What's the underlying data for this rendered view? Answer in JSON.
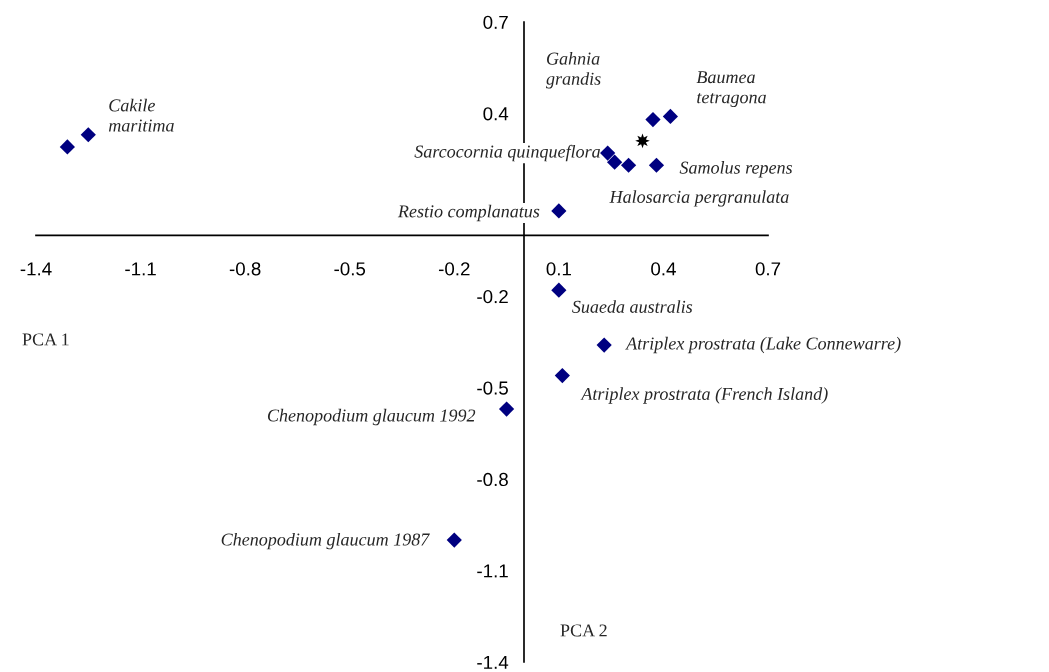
{
  "chart_data": {
    "type": "scatter",
    "xlabel": "PCA 1",
    "ylabel": "PCA 2",
    "xlim": [
      -1.4,
      0.7
    ],
    "ylim": [
      -1.4,
      0.7
    ],
    "xticks": [
      -1.4,
      -1.1,
      -0.8,
      -0.5,
      -0.2,
      0.1,
      0.4,
      0.7
    ],
    "yticks": [
      -1.4,
      -1.1,
      -0.8,
      -0.5,
      -0.2,
      0.4,
      0.7
    ],
    "grid": false,
    "legend": false,
    "series": [
      {
        "color": "#000080",
        "marker": "diamond",
        "x": [
          -1.31,
          -1.25,
          0.37,
          0.42,
          0.24,
          0.26,
          0.3,
          0.38,
          0.1,
          0.1,
          0.23,
          0.11,
          -0.05,
          -0.2
        ],
        "values": [
          0.29,
          0.33,
          0.38,
          0.39,
          0.27,
          0.24,
          0.23,
          0.23,
          0.08,
          -0.18,
          -0.36,
          -0.46,
          -0.57,
          -1.0
        ]
      },
      {
        "color": "#000000",
        "marker": "star",
        "x": [
          0.34
        ],
        "values": [
          0.31
        ]
      }
    ],
    "annotations": [
      {
        "text": "Cakile\nmaritima",
        "x": -1.25,
        "y": 0.33
      },
      "Gahnia\ngrandis",
      {
        "text": "Baumea\ntetragona",
        "x": 0.42,
        "y": 0.39
      },
      {
        "text": "Sarcocornia quinqueflora",
        "x": 0.24,
        "y": 0.27
      },
      {
        "text": "Samolus repens",
        "x": 0.38,
        "y": 0.23
      },
      {
        "text": "Halosarcia pergranulata",
        "x": 0.3,
        "y": 0.23
      },
      {
        "text": "Restio complanatus",
        "x": 0.1,
        "y": 0.08
      },
      {
        "text": "Suaeda australis",
        "x": 0.1,
        "y": -0.18
      },
      {
        "text": "Atriplex prostrata (Lake Connewarre)",
        "x": 0.23,
        "y": -0.36
      },
      {
        "text": "Atriplex prostrata (French Island)",
        "x": 0.11,
        "y": -0.46
      },
      {
        "text": "Chenopodium glaucum 1992",
        "x": -0.05,
        "y": -0.57
      },
      {
        "text": "Chenopodium glaucum 1987",
        "x": -0.2,
        "y": -1.0
      }
    ]
  }
}
